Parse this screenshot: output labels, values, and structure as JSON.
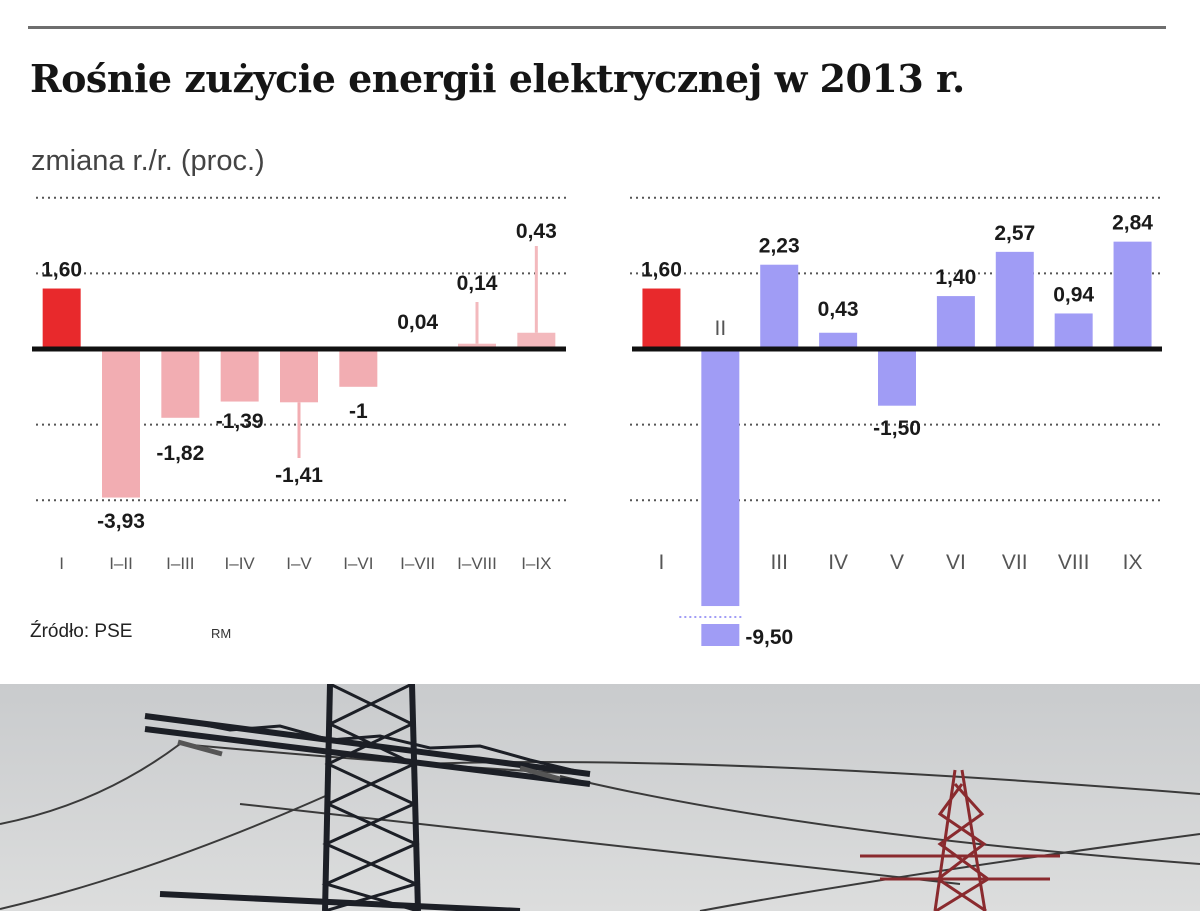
{
  "title": "Rośnie zużycie energii elektrycznej w 2013 r.",
  "subtitle": "zmiana r./r. (proc.)",
  "source": "Źródło: PSE",
  "author": "RM",
  "colors": {
    "highlight": "#e8292c",
    "cumulative_positive": "#f3b9bd",
    "cumulative_negative": "#f2adb2",
    "monthly": "#a09cf5",
    "axis": "#111111",
    "grid": "#555555"
  },
  "chart_data": [
    {
      "type": "bar",
      "categories": [
        "I",
        "I–II",
        "I–III",
        "I–IV",
        "I–V",
        "I–VI",
        "I–VII",
        "I–VIII",
        "I–IX"
      ],
      "values": [
        1.6,
        -3.93,
        -1.82,
        -1.39,
        -1.41,
        -1,
        0.04,
        0.14,
        0.43
      ],
      "data_labels": [
        "1,60",
        "-3,93",
        "-1,82",
        "-1,39",
        "-1,41",
        "-1",
        "0,04",
        "0,14",
        "0,43"
      ],
      "highlight_index": 0,
      "ylim": [
        -4,
        4
      ],
      "grid": true
    },
    {
      "type": "bar",
      "categories": [
        "I",
        "II",
        "III",
        "IV",
        "V",
        "VI",
        "VII",
        "VIII",
        "IX"
      ],
      "values": [
        1.6,
        -9.5,
        2.23,
        0.43,
        -1.5,
        1.4,
        2.57,
        0.94,
        2.84
      ],
      "data_labels": [
        "1,60",
        "-9,50",
        "2,23",
        "0,43",
        "-1,50",
        "1,40",
        "2,57",
        "0,94",
        "2,84"
      ],
      "highlight_index": 0,
      "ylim": [
        -4,
        4
      ],
      "axis_break_below": -6.8,
      "grid": true
    }
  ]
}
